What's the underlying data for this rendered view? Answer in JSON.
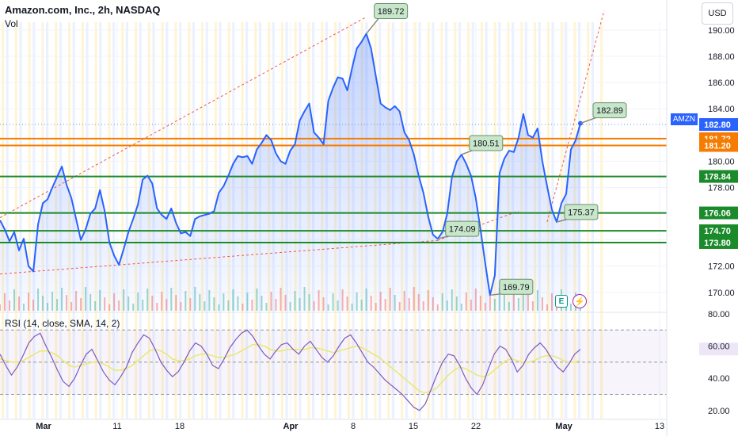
{
  "header": {
    "symbol_title": "Amazon.com, Inc., 2h, NASDAQ",
    "volume_label": "Vol",
    "rsi_label": "RSI (14, close, SMA, 14, 2)",
    "currency_button": "USD"
  },
  "colors": {
    "price_line": "#2962ff",
    "orange_level": "#f57c00",
    "green_level": "#1b8a2a",
    "callout_fill": "#c8e6c9",
    "trend_dashed": "#ef5350",
    "rsi_line": "#7e57c2",
    "rsi_sma": "#e8e872"
  },
  "events": {
    "earnings_icon": "E",
    "split_icon": "⚡"
  },
  "chart_data": [
    {
      "type": "line",
      "title": "Amazon.com, Inc., 2h, NASDAQ",
      "ylim": [
        168.6,
        190.6
      ],
      "x_ticks": [
        "Mar",
        "11",
        "18",
        "Apr",
        "8",
        "15",
        "22",
        "May",
        "13"
      ],
      "y_ticks": [
        170.0,
        172.0,
        174.0,
        176.0,
        178.0,
        180.0,
        184.0,
        186.0,
        188.0,
        190.0
      ],
      "series": [
        {
          "values": [
            175.5,
            174.8,
            173.9,
            174.6,
            173.2,
            174.1,
            172.0,
            171.6,
            175.2,
            176.8,
            177.1,
            178.0,
            178.8,
            179.6,
            178.2,
            177.2,
            175.6,
            174.0,
            174.8,
            176.0,
            176.4,
            177.8,
            176.2,
            173.8,
            172.8,
            172.1,
            173.3,
            174.6,
            175.6,
            176.7,
            178.6,
            178.9,
            178.3,
            176.4,
            175.9,
            175.6,
            176.4,
            175.3,
            174.5,
            174.6,
            174.3,
            175.6,
            175.8,
            175.9,
            176.0,
            176.2,
            177.6,
            178.1,
            178.9,
            179.8,
            180.4,
            180.3,
            180.4,
            179.8,
            180.9,
            181.4,
            182.0,
            181.6,
            180.6,
            180.0,
            179.8,
            180.8,
            181.3,
            183.1,
            183.8,
            184.4,
            182.2,
            181.8,
            181.3,
            184.6,
            185.6,
            186.4,
            186.3,
            185.4,
            187.1,
            188.6,
            189.1,
            189.72,
            188.6,
            186.5,
            184.4,
            184.1,
            183.9,
            184.2,
            183.8,
            182.2,
            181.6,
            180.5,
            178.9,
            177.6,
            175.8,
            174.4,
            174.09,
            174.6,
            176.0,
            178.8,
            180.0,
            180.5,
            179.8,
            178.9,
            177.2,
            174.8,
            172.2,
            169.79,
            171.3,
            179.1,
            180.2,
            180.8,
            180.7,
            181.8,
            183.6,
            182.0,
            181.8,
            182.5,
            180.0,
            178.1,
            176.3,
            175.37,
            176.8,
            177.5,
            180.9,
            181.6,
            182.89
          ],
          "last_value": 182.8
        }
      ],
      "price_callouts": [
        189.72,
        182.89,
        180.51,
        175.37,
        174.09,
        169.79
      ],
      "horizontal_levels": [
        {
          "value": 181.72,
          "label": "181.72",
          "color": "orange"
        },
        {
          "value": 181.2,
          "label": "181.20",
          "color": "orange"
        },
        {
          "value": 178.84,
          "label": "178.84",
          "color": "green"
        },
        {
          "value": 176.06,
          "label": "176.06",
          "color": "green"
        },
        {
          "value": 174.7,
          "label": "174.70",
          "color": "green"
        },
        {
          "value": 173.8,
          "label": "173.80",
          "color": "green"
        }
      ],
      "symbol_tag": {
        "label": "AMZN",
        "value": "182.80"
      },
      "trendlines": [
        {
          "from": [
            0,
            175.7
          ],
          "to": [
            77,
            191.0
          ]
        },
        {
          "from": [
            0,
            171.4
          ],
          "to": [
            92,
            173.96
          ]
        },
        {
          "from": [
            92,
            173.96
          ],
          "to": [
            109,
            176.2
          ]
        },
        {
          "from": [
            115,
            175.37
          ],
          "to": [
            127,
            191.5
          ]
        }
      ],
      "grid": true,
      "legend": "none"
    },
    {
      "type": "line",
      "title": "RSI (14, close, SMA, 14, 2)",
      "ylim": [
        15,
        80
      ],
      "y_ticks": [
        20.0,
        40.0,
        60.0,
        80.0
      ],
      "bands": [
        70,
        50,
        30
      ],
      "series": [
        {
          "values": [
            55,
            48,
            42,
            47,
            54,
            62,
            66,
            68,
            60,
            53,
            45,
            38,
            35,
            40,
            48,
            55,
            58,
            51,
            44,
            39,
            36,
            41,
            47,
            56,
            62,
            67,
            65,
            58,
            50,
            45,
            41,
            44,
            50,
            57,
            62,
            60,
            55,
            48,
            46,
            52,
            59,
            64,
            68,
            70,
            66,
            60,
            55,
            52,
            57,
            61,
            62,
            58,
            55,
            60,
            63,
            58,
            53,
            50,
            54,
            60,
            65,
            67,
            62,
            56,
            50,
            47,
            43,
            39,
            36,
            33,
            30,
            26,
            22,
            20,
            24,
            33,
            42,
            50,
            55,
            54,
            48,
            40,
            34,
            30,
            36,
            46,
            55,
            60,
            58,
            52,
            44,
            48,
            55,
            59,
            62,
            58,
            52,
            47,
            44,
            49,
            55,
            58
          ]
        },
        {
          "values": [
            52,
            51,
            50,
            50,
            51,
            53,
            55,
            57,
            57,
            56,
            54,
            51,
            48,
            47,
            48,
            49,
            50,
            50,
            49,
            47,
            45,
            45,
            46,
            48,
            51,
            54,
            57,
            58,
            57,
            55,
            52,
            51,
            51,
            52,
            54,
            55,
            55,
            54,
            53,
            53,
            54,
            55,
            57,
            59,
            61,
            61,
            60,
            58,
            57,
            57,
            58,
            58,
            58,
            58,
            59,
            59,
            58,
            57,
            56,
            57,
            58,
            59,
            60,
            59,
            57,
            55,
            53,
            50,
            47,
            44,
            41,
            38,
            35,
            32,
            31,
            32,
            34,
            38,
            42,
            45,
            47,
            46,
            44,
            42,
            41,
            42,
            45,
            48,
            51,
            52,
            51,
            50,
            50,
            51,
            53,
            54,
            54,
            53,
            51,
            50,
            50,
            51
          ]
        }
      ],
      "last_value": 58.2,
      "grid": true
    }
  ]
}
